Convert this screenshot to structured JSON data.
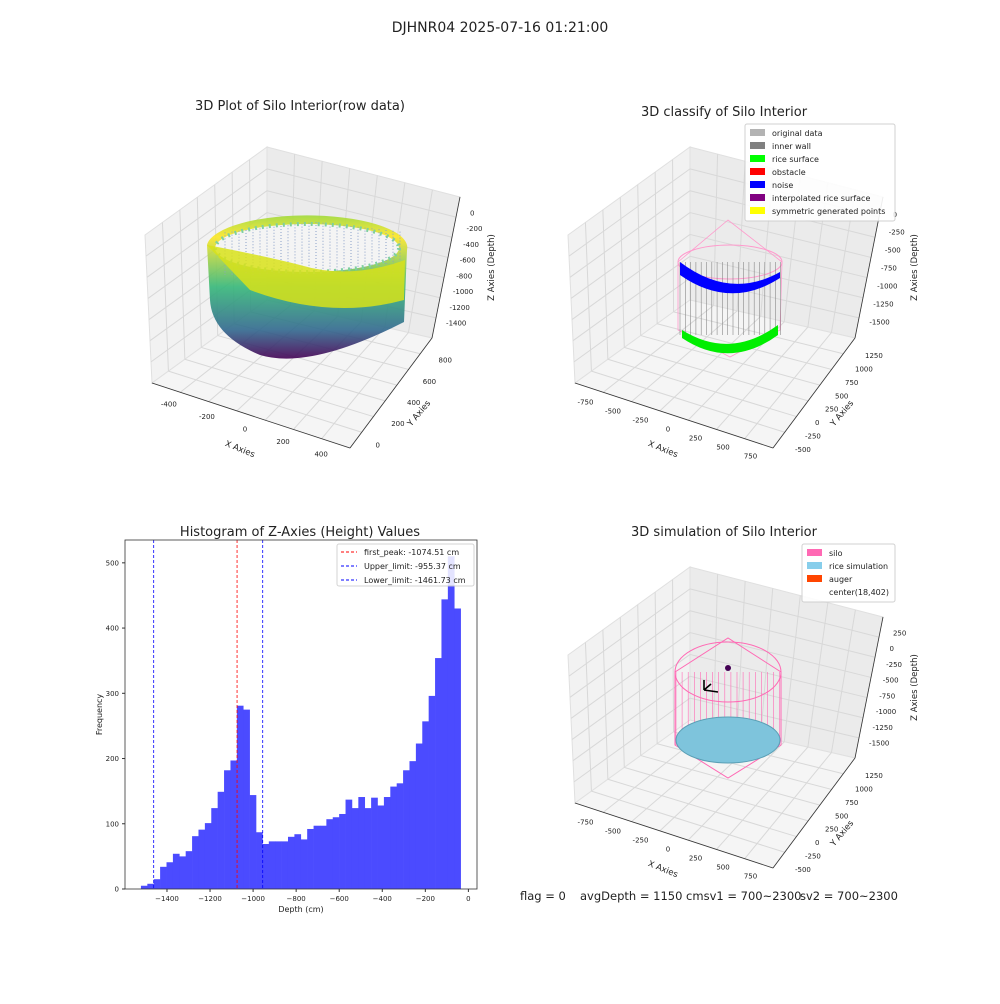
{
  "figure_title": "DJHNR04 2025-07-16 01:21:00",
  "status_line": {
    "flag": "flag = 0",
    "avg": "avgDepth = 1150 cmsv1 = 700~2300",
    "sv2": "sv2 = 700~2300"
  },
  "chart_data": [
    {
      "type": "scatter3d",
      "title": "3D Plot of Silo Interior(row data)",
      "xlabel": "X Axies",
      "ylabel": "Y Axies",
      "zlabel": "Z Axies (Depth)",
      "xticks": [
        "-400",
        "-200",
        "0",
        "200",
        "400"
      ],
      "yticks": [
        "0",
        "200",
        "400",
        "600",
        "800"
      ],
      "zticks": [
        "0",
        "-200",
        "-400",
        "-600",
        "-800",
        "-1000",
        "-1200",
        "-1400"
      ],
      "colormap": "viridis"
    },
    {
      "type": "scatter3d",
      "title": "3D classify of Silo Interior",
      "xlabel": "X Axies",
      "ylabel": "Y Axies",
      "zlabel": "Z Axies (Depth)",
      "xticks": [
        "-750",
        "-500",
        "-250",
        "0",
        "250",
        "500",
        "750"
      ],
      "yticks": [
        "-500",
        "-250",
        "0",
        "250",
        "500",
        "750",
        "1000",
        "1250"
      ],
      "zticks": [
        "0",
        "-250",
        "-500",
        "-750",
        "-1000",
        "-1250",
        "-1500"
      ],
      "legend": [
        {
          "label": "original data",
          "color": "#b3b3b3"
        },
        {
          "label": "inner wall",
          "color": "#808080"
        },
        {
          "label": "rice surface",
          "color": "#00ff00"
        },
        {
          "label": "obstacle",
          "color": "#ff0000"
        },
        {
          "label": "noise",
          "color": "#0000ff"
        },
        {
          "label": "interpolated rice surface",
          "color": "#800080"
        },
        {
          "label": "symmetric generated points",
          "color": "#ffff00"
        }
      ],
      "legend_position": "top-right"
    },
    {
      "type": "bar",
      "title": "Histogram of Z-Axies (Height) Values",
      "xlabel": "Depth (cm)",
      "ylabel": "Frequency",
      "xlim": [
        -1595,
        40
      ],
      "ylim": [
        0,
        535
      ],
      "xticks": [
        -1400,
        -1200,
        -1000,
        -800,
        -600,
        -400,
        -200,
        0
      ],
      "yticks": [
        0,
        100,
        200,
        300,
        400,
        500
      ],
      "bin_start": -1521,
      "bin_width": 29.7,
      "values": [
        5,
        8,
        15,
        34,
        41,
        54,
        50,
        58,
        81,
        91,
        101,
        124,
        149,
        182,
        197,
        281,
        275,
        144,
        87,
        69,
        73,
        73,
        73,
        80,
        84,
        76,
        92,
        97,
        97,
        107,
        110,
        115,
        137,
        124,
        141,
        124,
        140,
        128,
        141,
        157,
        162,
        182,
        196,
        223,
        257,
        296,
        354,
        444,
        510,
        430
      ],
      "bar_color": "#4b4bff",
      "vlines": [
        {
          "label": "first_peak: -1074.51 cm",
          "x": -1074.51,
          "color": "#ff0000"
        },
        {
          "label": "Upper_limit: -955.37 cm",
          "x": -955.37,
          "color": "#0000ff"
        },
        {
          "label": "Lower_limit: -1461.73 cm",
          "x": -1461.73,
          "color": "#0000ff"
        }
      ],
      "legend_position": "top-right"
    },
    {
      "type": "surface3d",
      "title": "3D simulation of Silo Interior",
      "xlabel": "X Axies",
      "ylabel": "Y Axies",
      "zlabel": "Z Axies (Depth)",
      "xticks": [
        "-750",
        "-500",
        "-250",
        "0",
        "250",
        "500",
        "750"
      ],
      "yticks": [
        "-500",
        "-250",
        "0",
        "250",
        "500",
        "750",
        "1000",
        "1250"
      ],
      "zticks": [
        "250",
        "0",
        "-250",
        "-500",
        "-750",
        "-1000",
        "-1250",
        "-1500"
      ],
      "legend": [
        {
          "label": "silo",
          "color": "#ff69b4"
        },
        {
          "label": "rice simulation",
          "color": "#87ceeb"
        },
        {
          "label": "auger",
          "color": "#ff4500"
        },
        {
          "label": "center(18,402)",
          "color": "none"
        }
      ],
      "legend_position": "top-right"
    }
  ]
}
